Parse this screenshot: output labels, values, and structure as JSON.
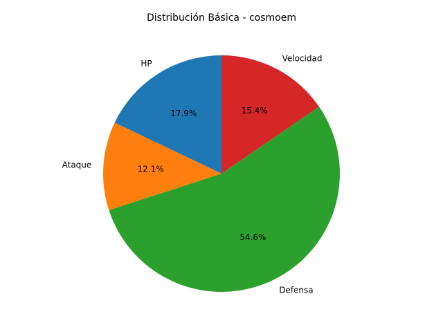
{
  "chart_data": {
    "type": "pie",
    "title": "Distribución Básica - cosmoem",
    "categories": [
      "HP",
      "Ataque",
      "Defensa",
      "Velocidad"
    ],
    "values": [
      43,
      29,
      131,
      37
    ],
    "percent_labels": [
      "17.9%",
      "12.1%",
      "54.6%",
      "15.4%"
    ],
    "colors": [
      "#1f77b4",
      "#ff7f0e",
      "#2ca02c",
      "#d62728"
    ],
    "start_angle_deg": 90,
    "direction": "counterclockwise"
  }
}
